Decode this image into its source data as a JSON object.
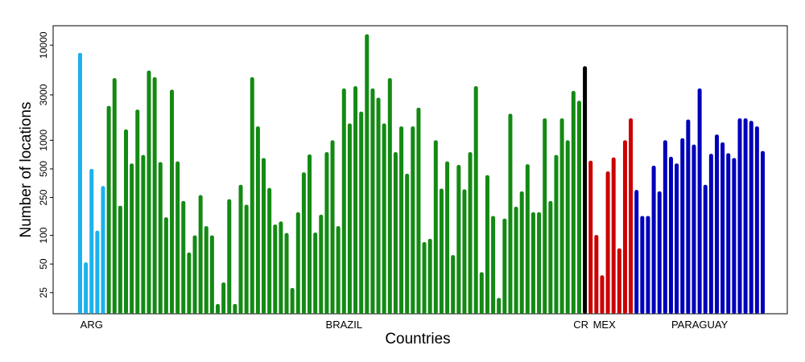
{
  "chart_data": {
    "type": "bar",
    "title": "",
    "xlabel": "Countries",
    "ylabel": "Number of locations",
    "y_scale": "log",
    "ylim": [
      15,
      16000
    ],
    "y_ticks": [
      {
        "value": 25,
        "label": "25"
      },
      {
        "value": 50,
        "label": "50"
      },
      {
        "value": 100,
        "label": "100"
      },
      {
        "value": 250,
        "label": "250"
      },
      {
        "value": 500,
        "label": "500"
      },
      {
        "value": 1000,
        "label": "1000"
      },
      {
        "value": 3000,
        "label": "3000"
      },
      {
        "value": 10000,
        "label": "10000"
      }
    ],
    "grid": false,
    "legend": "none",
    "groups": [
      {
        "name": "ARG",
        "color": "#1AB2EE",
        "values": [
          8300,
          52,
          500,
          112,
          330
        ]
      },
      {
        "name": "BRAZIL",
        "color": "#138A13",
        "values": [
          2300,
          4500,
          205,
          1300,
          570,
          2100,
          700,
          5400,
          4600,
          590,
          155,
          3400,
          600,
          230,
          66,
          100,
          265,
          125,
          100,
          19,
          32,
          240,
          19,
          340,
          210,
          4600,
          1400,
          650,
          315,
          130,
          140,
          106,
          28,
          175,
          460,
          710,
          107,
          165,
          750,
          1000,
          125,
          3500,
          1500,
          3700,
          2000,
          13000,
          3500,
          2800,
          1500,
          4500,
          750,
          1400,
          445,
          1400,
          2200,
          85,
          92,
          1000,
          310,
          600,
          62,
          550,
          305,
          750,
          3700,
          41,
          430,
          160,
          22,
          150,
          1900,
          200,
          290,
          560,
          175,
          175,
          1700,
          230,
          700,
          1700,
          1000,
          3300,
          2600
        ]
      },
      {
        "name": "CR",
        "color": "#000000",
        "values": [
          6000
        ]
      },
      {
        "name": "MEX",
        "color": "#CC0000",
        "values": [
          610,
          101,
          38,
          470,
          660,
          73,
          1000,
          1700
        ]
      },
      {
        "name": "PARAGUAY",
        "color": "#0000BB",
        "values": [
          300,
          160,
          160,
          540,
          290,
          1000,
          670,
          570,
          1050,
          1650,
          900,
          3500,
          340,
          720,
          1150,
          950,
          730,
          650,
          1700,
          1700,
          1600,
          1400,
          770
        ]
      }
    ]
  }
}
